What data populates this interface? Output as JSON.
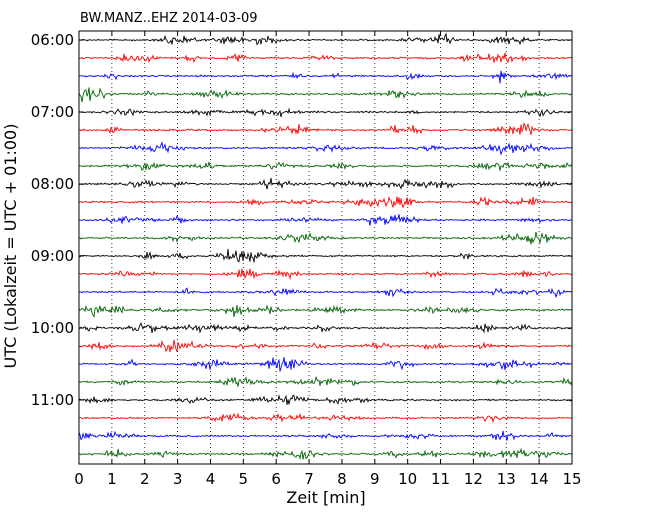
{
  "chart_data": {
    "type": "line",
    "title": "BW.MANZ..EHZ 2014-03-09",
    "xlabel": "Zeit  [min]",
    "ylabel": "UTC (Lokalzeit = UTC + 01:00)",
    "xlim": [
      0,
      15
    ],
    "x_ticks": [
      "0",
      "1",
      "2",
      "3",
      "4",
      "5",
      "6",
      "7",
      "8",
      "9",
      "10",
      "11",
      "12",
      "13",
      "14",
      "15"
    ],
    "y_tick_labels": [
      "06:00",
      "07:00",
      "08:00",
      "09:00",
      "10:00",
      "11:00"
    ],
    "trace_interval_min": 15,
    "start_time": "06:00",
    "num_traces": 24,
    "trace_colors": [
      "#000000",
      "#ff0000",
      "#0000ff",
      "#006400"
    ],
    "grid": "vertical dotted",
    "series_note": "Continuous seismogram traces, one per 15-minute window."
  }
}
